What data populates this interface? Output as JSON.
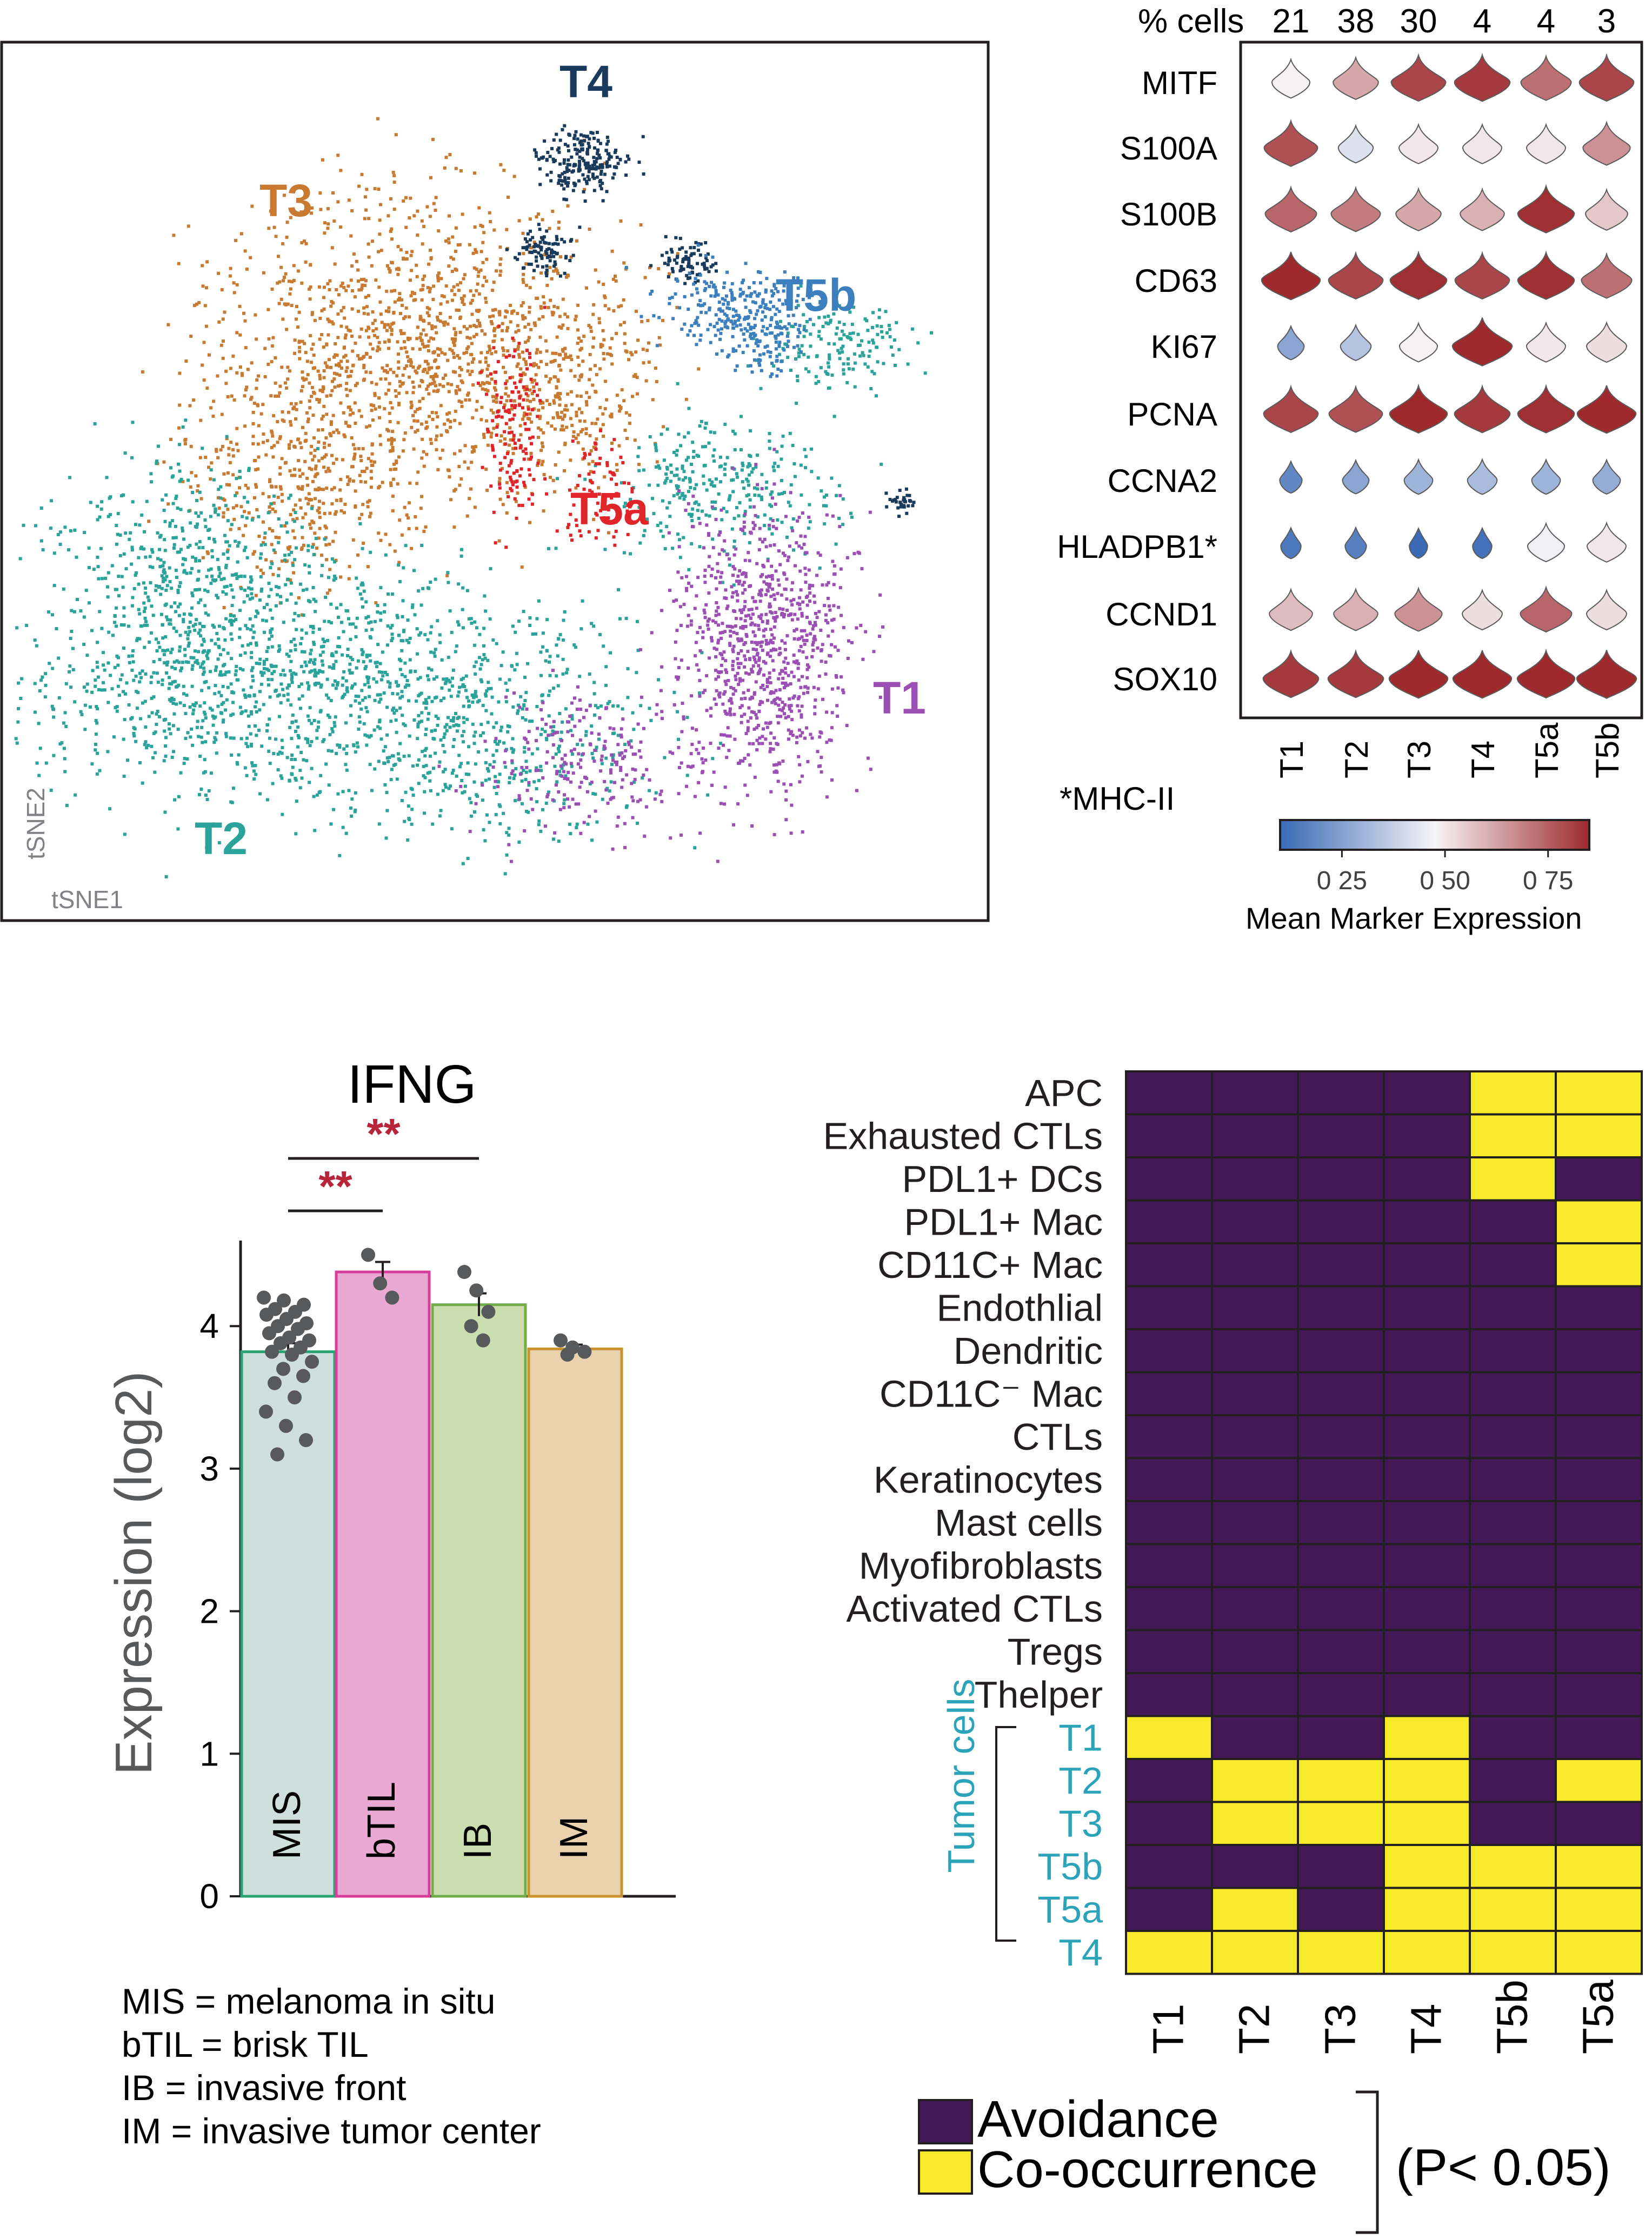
{
  "chart_data": [
    {
      "type": "scatter",
      "xlabel": "tSNE1",
      "ylabel": "tSNE2",
      "clusters": [
        {
          "name": "T1",
          "color": "#9b4fb5",
          "pct_cells": 21
        },
        {
          "name": "T2",
          "color": "#2aa39a",
          "pct_cells": 38
        },
        {
          "name": "T3",
          "color": "#c77a30",
          "pct_cells": 30
        },
        {
          "name": "T4",
          "color": "#1a3a5c",
          "pct_cells": 4
        },
        {
          "name": "T5a",
          "color": "#e02428",
          "pct_cells": 4
        },
        {
          "name": "T5b",
          "color": "#3c7fbf",
          "pct_cells": 3
        }
      ]
    },
    {
      "type": "heatmap",
      "subtype": "violin",
      "header_label": "% cells",
      "pct_cells": [
        "21",
        "38",
        "30",
        "4",
        "4",
        "3"
      ],
      "columns": [
        "T1",
        "T2",
        "T3",
        "T4",
        "T5a",
        "T5b"
      ],
      "rows": [
        "MITF",
        "S100A",
        "S100B",
        "CD63",
        "KI67",
        "PCNA",
        "CCNA2",
        "HLADPB1*",
        "CCND1",
        "SOX10"
      ],
      "values": [
        [
          0.48,
          0.62,
          0.8,
          0.82,
          0.72,
          0.8
        ],
        [
          0.78,
          0.42,
          0.5,
          0.5,
          0.5,
          0.66
        ],
        [
          0.74,
          0.7,
          0.62,
          0.6,
          0.84,
          0.56
        ],
        [
          0.88,
          0.8,
          0.84,
          0.8,
          0.84,
          0.72
        ],
        [
          0.26,
          0.34,
          0.48,
          0.9,
          0.5,
          0.52
        ],
        [
          0.8,
          0.78,
          0.86,
          0.82,
          0.84,
          0.88
        ],
        [
          0.18,
          0.26,
          0.3,
          0.32,
          0.3,
          0.28
        ],
        [
          0.14,
          0.16,
          0.1,
          0.12,
          0.46,
          0.5
        ],
        [
          0.58,
          0.6,
          0.66,
          0.52,
          0.74,
          0.52
        ],
        [
          0.82,
          0.82,
          0.88,
          0.88,
          0.86,
          0.9
        ]
      ],
      "footnote": "*MHC-II",
      "colorbar": {
        "label": "Mean Marker Expression",
        "ticks": [
          "0 25",
          "0 50",
          "0 75"
        ],
        "tick_values": [
          0.25,
          0.5,
          0.75
        ],
        "range": [
          0.1,
          0.85
        ],
        "colors": [
          "#3a6ab6",
          "#f7f5f7",
          "#9e2a2e"
        ]
      }
    },
    {
      "type": "bar",
      "title": "IFNG",
      "ylabel": "Expression (log2)",
      "ylim": [
        0,
        4.6
      ],
      "yticks": [
        "0",
        "1",
        "2",
        "3",
        "4"
      ],
      "categories": [
        "MIS",
        "bTIL",
        "IB",
        "IM"
      ],
      "values": [
        3.82,
        4.38,
        4.15,
        3.84
      ],
      "errors": [
        0.06,
        0.07,
        0.08,
        0.03
      ],
      "fills": [
        "#cfdfdb",
        "#e9a9d2",
        "#cbdeb0",
        "#e9d2ad"
      ],
      "edges": [
        "#2aa374",
        "#d63c9a",
        "#72ad48",
        "#c9922f"
      ],
      "points": [
        [
          4.2,
          4.18,
          4.15,
          4.12,
          4.1,
          4.08,
          4.05,
          4.02,
          4.0,
          3.98,
          3.95,
          3.92,
          3.9,
          3.88,
          3.85,
          3.82,
          3.8,
          3.75,
          3.7,
          3.65,
          3.6,
          3.5,
          3.4,
          3.3,
          3.2,
          3.1
        ],
        [
          4.5,
          4.3,
          4.2
        ],
        [
          4.38,
          4.25,
          4.1,
          4.0,
          3.9
        ],
        [
          3.9,
          3.85,
          3.82,
          3.8
        ]
      ],
      "significance": [
        {
          "pair": [
            "MIS",
            "IB"
          ],
          "label": "**"
        },
        {
          "pair": [
            "MIS",
            "bTIL"
          ],
          "label": "**"
        }
      ],
      "legend": [
        "MIS = melanoma in situ",
        "bTIL = brisk TIL",
        "IB = invasive front",
        "IM = invasive tumor center"
      ]
    },
    {
      "type": "heatmap",
      "rows": [
        "APC",
        "Exhausted CTLs",
        "PDL1+ DCs",
        "PDL1+ Mac",
        "CD11C+ Mac",
        "Endothlial",
        "Dendritic",
        "CD11C⁻ Mac",
        "CTLs",
        "Keratinocytes",
        "Mast cells",
        "Myofibroblasts",
        "Activated CTLs",
        "Tregs",
        "Thelper",
        "T1",
        "T2",
        "T3",
        "T5b",
        "T5a",
        "T4"
      ],
      "columns": [
        "T1",
        "T2",
        "T3",
        "T4",
        "T5b",
        "T5a"
      ],
      "row_group_label": "Tumor cells",
      "values": [
        [
          0,
          0,
          0,
          0,
          1,
          1
        ],
        [
          0,
          0,
          0,
          0,
          1,
          1
        ],
        [
          0,
          0,
          0,
          0,
          1,
          0
        ],
        [
          0,
          0,
          0,
          0,
          0,
          1
        ],
        [
          0,
          0,
          0,
          0,
          0,
          1
        ],
        [
          0,
          0,
          0,
          0,
          0,
          0
        ],
        [
          0,
          0,
          0,
          0,
          0,
          0
        ],
        [
          0,
          0,
          0,
          0,
          0,
          0
        ],
        [
          0,
          0,
          0,
          0,
          0,
          0
        ],
        [
          0,
          0,
          0,
          0,
          0,
          0
        ],
        [
          0,
          0,
          0,
          0,
          0,
          0
        ],
        [
          0,
          0,
          0,
          0,
          0,
          0
        ],
        [
          0,
          0,
          0,
          0,
          0,
          0
        ],
        [
          0,
          0,
          0,
          0,
          0,
          0
        ],
        [
          0,
          0,
          0,
          0,
          0,
          0
        ],
        [
          1,
          0,
          0,
          1,
          0,
          0
        ],
        [
          0,
          1,
          1,
          1,
          0,
          1
        ],
        [
          0,
          1,
          1,
          1,
          0,
          0
        ],
        [
          0,
          0,
          0,
          1,
          1,
          1
        ],
        [
          0,
          1,
          0,
          1,
          1,
          1
        ],
        [
          1,
          1,
          1,
          1,
          1,
          1
        ]
      ],
      "colors": {
        "0": "#421956",
        "1": "#f7ea2a"
      },
      "legend": [
        {
          "label": "Avoidance",
          "value": 0
        },
        {
          "label": "Co-occurrence",
          "value": 1
        }
      ],
      "legend_note": "(P< 0.05)"
    }
  ]
}
